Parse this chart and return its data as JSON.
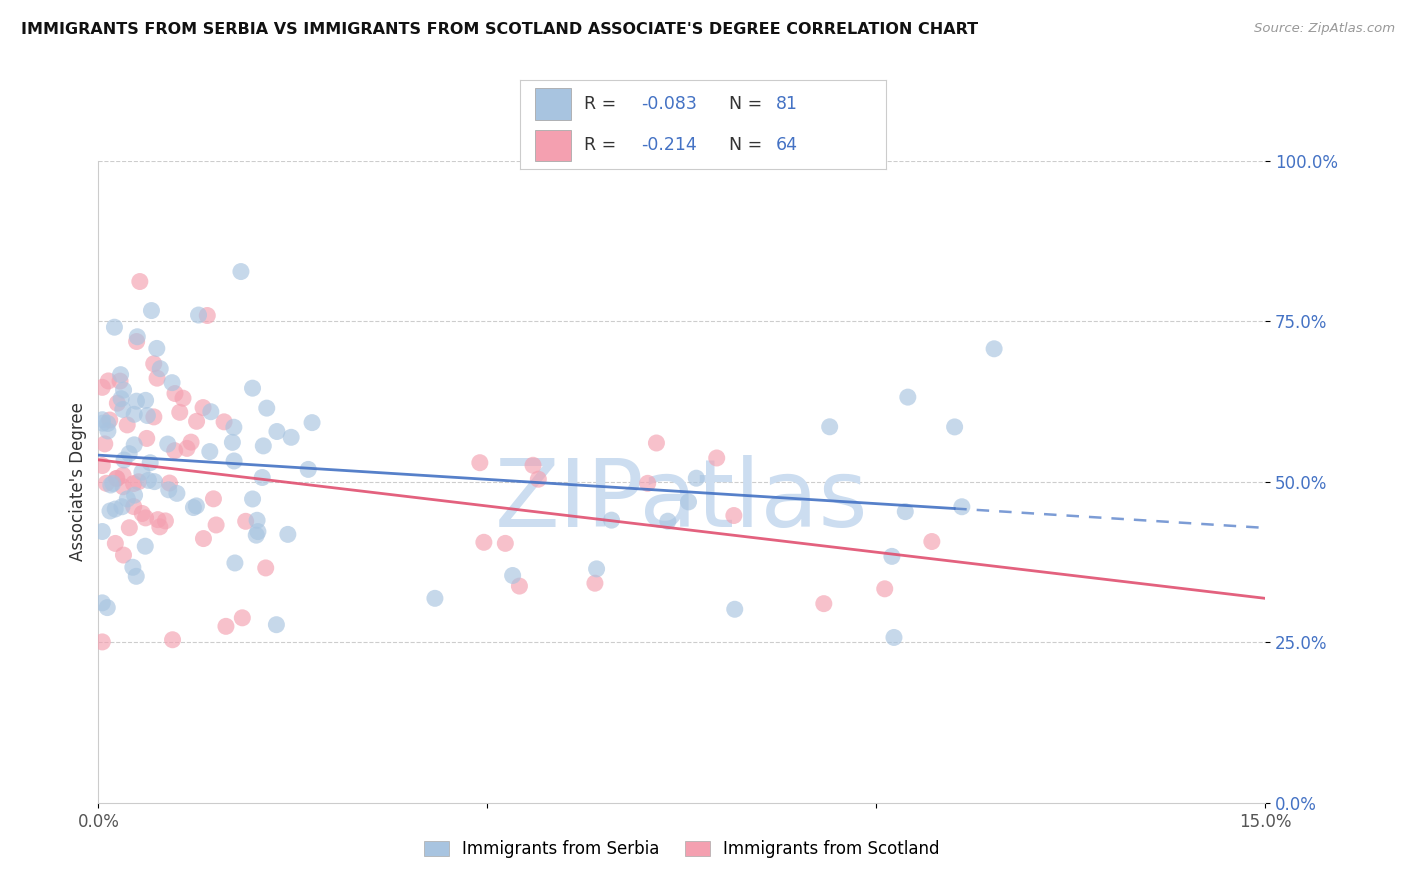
{
  "title": "IMMIGRANTS FROM SERBIA VS IMMIGRANTS FROM SCOTLAND ASSOCIATE'S DEGREE CORRELATION CHART",
  "source": "Source: ZipAtlas.com",
  "ylabel": "Associate's Degree",
  "xlim": [
    0.0,
    15.0
  ],
  "ylim": [
    0.0,
    100.0
  ],
  "xticks": [
    0.0,
    15.0
  ],
  "yticks": [
    0.0,
    25.0,
    50.0,
    75.0,
    100.0
  ],
  "serbia_R": -0.083,
  "serbia_N": 81,
  "scotland_R": -0.214,
  "scotland_N": 64,
  "serbia_color": "#a8c4e0",
  "scotland_color": "#f4a0b0",
  "serbia_line_color": "#4472c4",
  "scotland_line_color": "#e05070",
  "r_n_color": "#4472c4",
  "label_color": "#333333",
  "watermark": "ZIPatlas",
  "watermark_color": "#ccddf0",
  "grid_color": "#c8c8c8",
  "right_tick_color": "#4472c4",
  "title_color": "#111111",
  "source_color": "#999999",
  "serbia_solid_end_x": 11.0,
  "scatter_size": 150,
  "scatter_alpha": 0.65
}
